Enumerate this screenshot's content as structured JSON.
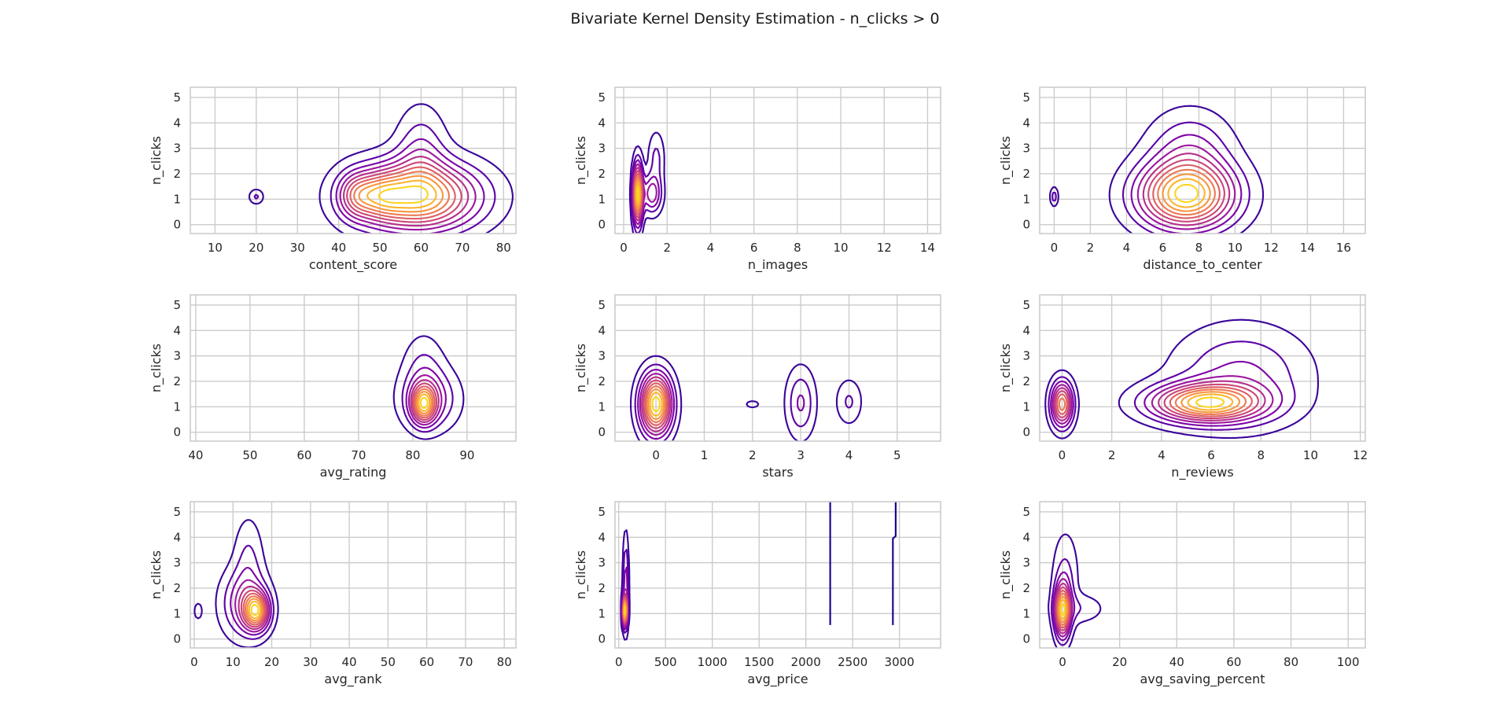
{
  "title": "Bivariate Kernel Density Estimation - n_clicks > 0",
  "colors": {
    "grid": "#cccccc",
    "frame": "#cccccc",
    "palette": [
      "#3a049a",
      "#5c01a6",
      "#7e03a8",
      "#9c179e",
      "#b52f8c",
      "#cc4778",
      "#de5f65",
      "#ed7953",
      "#f89540",
      "#fdb42f",
      "#fbd524"
    ]
  },
  "chart_data": [
    {
      "type": "contour",
      "xlabel": "content_score",
      "ylabel": "n_clicks",
      "xlim": [
        4,
        83
      ],
      "ylim": [
        -0.35,
        5.4
      ],
      "xticks": [
        10,
        20,
        30,
        40,
        50,
        60,
        70,
        80
      ],
      "yticks": [
        0,
        1,
        2,
        3,
        4,
        5
      ],
      "modes": [
        {
          "x": 59,
          "y": 1.1,
          "sx": 10,
          "sy": 0.9,
          "w": 1.0
        },
        {
          "x": 44,
          "y": 1.15,
          "sx": 3,
          "sy": 0.6,
          "w": 0.35
        },
        {
          "x": 50,
          "y": 1.15,
          "sx": 4,
          "sy": 0.6,
          "w": 0.35
        },
        {
          "x": 60,
          "y": 2.8,
          "sx": 4,
          "sy": 1.2,
          "w": 0.25
        },
        {
          "x": 20,
          "y": 1.1,
          "sx": 1.2,
          "sy": 0.2,
          "w": 0.18
        }
      ]
    },
    {
      "type": "contour",
      "xlabel": "n_images",
      "ylabel": "n_clicks",
      "xlim": [
        -0.4,
        14.6
      ],
      "ylim": [
        -0.35,
        5.4
      ],
      "xticks": [
        0,
        2,
        4,
        6,
        8,
        10,
        12,
        14
      ],
      "yticks": [
        0,
        1,
        2,
        3,
        4,
        5
      ],
      "modes": [
        {
          "x": 0.65,
          "y": 1.2,
          "sx": 0.15,
          "sy": 0.8,
          "w": 1.0
        },
        {
          "x": 1.3,
          "y": 1.2,
          "sx": 0.3,
          "sy": 0.5,
          "w": 0.4
        },
        {
          "x": 1.5,
          "y": 2.6,
          "sx": 0.25,
          "sy": 0.7,
          "w": 0.18
        }
      ]
    },
    {
      "type": "contour",
      "xlabel": "distance_to_center",
      "ylabel": "n_clicks",
      "xlim": [
        -0.8,
        17.2
      ],
      "ylim": [
        -0.35,
        5.4
      ],
      "xticks": [
        0,
        2,
        4,
        6,
        8,
        10,
        12,
        14,
        16
      ],
      "yticks": [
        0,
        1,
        2,
        3,
        4,
        5
      ],
      "modes": [
        {
          "x": 7.3,
          "y": 1.15,
          "sx": 1.8,
          "sy": 0.9,
          "w": 1.0
        },
        {
          "x": 7.5,
          "y": 3.0,
          "sx": 1.5,
          "sy": 1.0,
          "w": 0.25
        },
        {
          "x": 0,
          "y": 1.1,
          "sx": 0.15,
          "sy": 0.25,
          "w": 0.2
        }
      ]
    },
    {
      "type": "contour",
      "xlabel": "avg_rating",
      "ylabel": "n_clicks",
      "xlim": [
        39,
        99
      ],
      "ylim": [
        -0.35,
        5.4
      ],
      "xticks": [
        40,
        50,
        60,
        70,
        80,
        90
      ],
      "yticks": [
        0,
        1,
        2,
        3,
        4,
        5
      ],
      "modes": [
        {
          "x": 82,
          "y": 1.1,
          "sx": 1.5,
          "sy": 0.5,
          "w": 1.0
        },
        {
          "x": 83,
          "y": 1.3,
          "sx": 3.5,
          "sy": 0.8,
          "w": 0.45
        },
        {
          "x": 82,
          "y": 2.6,
          "sx": 2.5,
          "sy": 0.9,
          "w": 0.2
        }
      ]
    },
    {
      "type": "contour",
      "xlabel": "stars",
      "ylabel": "n_clicks",
      "xlim": [
        -0.85,
        5.9
      ],
      "ylim": [
        -0.35,
        5.4
      ],
      "xticks": [
        0,
        1,
        2,
        3,
        4,
        5
      ],
      "yticks": [
        0,
        1,
        2,
        3,
        4,
        5
      ],
      "modes": [
        {
          "x": 0,
          "y": 1.1,
          "sx": 0.22,
          "sy": 0.8,
          "w": 1.0
        },
        {
          "x": 3,
          "y": 1.15,
          "sx": 0.2,
          "sy": 0.9,
          "w": 0.25
        },
        {
          "x": 4,
          "y": 1.2,
          "sx": 0.18,
          "sy": 0.6,
          "w": 0.16
        },
        {
          "x": 2,
          "y": 1.1,
          "sx": 0.12,
          "sy": 0.12,
          "w": 0.1
        }
      ]
    },
    {
      "type": "contour",
      "xlabel": "n_reviews",
      "ylabel": "n_clicks",
      "xlim": [
        -0.9,
        12.2
      ],
      "ylim": [
        -0.35,
        5.4
      ],
      "xticks": [
        0,
        2,
        4,
        6,
        8,
        10,
        12
      ],
      "yticks": [
        0,
        1,
        2,
        3,
        4,
        5
      ],
      "modes": [
        {
          "x": 0,
          "y": 1.1,
          "sx": 0.3,
          "sy": 0.6,
          "w": 0.85
        },
        {
          "x": 5.8,
          "y": 1.15,
          "sx": 1.5,
          "sy": 0.5,
          "w": 1.0
        },
        {
          "x": 7.2,
          "y": 2.2,
          "sx": 1.8,
          "sy": 1.3,
          "w": 0.3
        }
      ]
    },
    {
      "type": "contour",
      "xlabel": "avg_rank",
      "ylabel": "n_clicks",
      "xlim": [
        -1,
        83
      ],
      "ylim": [
        -0.35,
        5.4
      ],
      "xticks": [
        0,
        10,
        20,
        30,
        40,
        50,
        60,
        70,
        80
      ],
      "yticks": [
        0,
        1,
        2,
        3,
        4,
        5
      ],
      "modes": [
        {
          "x": 16,
          "y": 1.1,
          "sx": 2.2,
          "sy": 0.5,
          "w": 1.0
        },
        {
          "x": 13,
          "y": 1.4,
          "sx": 4,
          "sy": 0.9,
          "w": 0.45
        },
        {
          "x": 14,
          "y": 3.2,
          "sx": 2.5,
          "sy": 1.1,
          "w": 0.2
        },
        {
          "x": 1,
          "y": 1.1,
          "sx": 0.8,
          "sy": 0.25,
          "w": 0.15
        }
      ]
    },
    {
      "type": "contour",
      "xlabel": "avg_price",
      "ylabel": "n_clicks",
      "xlim": [
        -40,
        3440
      ],
      "ylim": [
        -0.35,
        5.4
      ],
      "xticks": [
        0,
        500,
        1000,
        1500,
        2000,
        2500,
        3000
      ],
      "yticks": [
        0,
        1,
        2,
        3,
        4,
        5
      ],
      "modes": [
        {
          "x": 65,
          "y": 1.1,
          "sx": 18,
          "sy": 0.4,
          "w": 1.0
        },
        {
          "x": 75,
          "y": 2.2,
          "sx": 20,
          "sy": 1.2,
          "w": 0.35
        }
      ],
      "vlines": [
        2260,
        2930,
        2960
      ]
    },
    {
      "type": "contour",
      "xlabel": "avg_saving_percent",
      "ylabel": "n_clicks",
      "xlim": [
        -8,
        106
      ],
      "ylim": [
        -0.35,
        5.4
      ],
      "xticks": [
        0,
        20,
        40,
        60,
        80,
        100
      ],
      "yticks": [
        0,
        1,
        2,
        3,
        4,
        5
      ],
      "modes": [
        {
          "x": 0,
          "y": 1.1,
          "sx": 1.8,
          "sy": 0.7,
          "w": 1.0
        },
        {
          "x": 6,
          "y": 1.2,
          "sx": 6,
          "sy": 0.4,
          "w": 0.15
        },
        {
          "x": 1,
          "y": 2.4,
          "sx": 3,
          "sy": 1.2,
          "w": 0.2
        }
      ]
    }
  ]
}
